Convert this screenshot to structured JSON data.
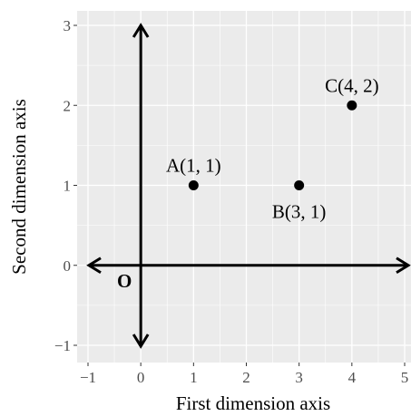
{
  "chart_data": {
    "type": "scatter",
    "xlabel": "First dimension axis",
    "ylabel": "Second dimension axis",
    "xlim": [
      -1.0,
      5.0
    ],
    "ylim": [
      -1.2,
      3.2
    ],
    "x_ticks": [
      -1,
      0,
      1,
      2,
      3,
      4,
      5
    ],
    "y_ticks": [
      -1,
      0,
      1,
      2,
      3
    ],
    "x_tick_labels": [
      "−1",
      "0",
      "1",
      "2",
      "3",
      "4",
      "5"
    ],
    "y_tick_labels": [
      "−1",
      "0",
      "1",
      "2",
      "3"
    ],
    "grid": true,
    "background_color": "#ebebeb",
    "grid_color": "#ffffff",
    "points": [
      {
        "x": 1,
        "y": 1,
        "label": "A(1, 1)"
      },
      {
        "x": 3,
        "y": 1,
        "label": "B(3, 1)"
      },
      {
        "x": 4,
        "y": 2,
        "label": "C(4, 2)"
      }
    ],
    "arrows": [
      {
        "from": [
          -1.0,
          0
        ],
        "to": [
          5.0,
          0
        ]
      },
      {
        "from": [
          0,
          -1.2
        ],
        "to": [
          0,
          3.2
        ]
      }
    ],
    "origin_label": "O"
  }
}
